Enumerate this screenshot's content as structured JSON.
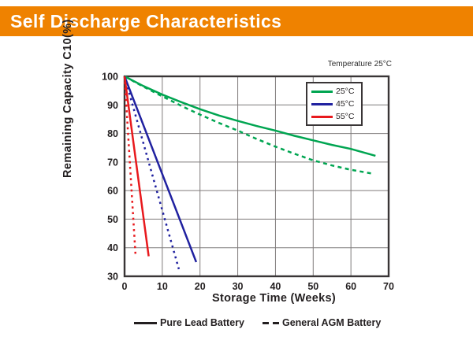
{
  "title_bar": {
    "text": "Self Discharge Characteristics"
  },
  "colors": {
    "accent_orange": "#EF8200",
    "series_green": "#00A551",
    "series_blue": "#2021A0",
    "series_red": "#E8191D",
    "grid_gray": "#7F7B7B",
    "text_black": "#231F20"
  },
  "chart_data": {
    "type": "line",
    "title": "Self Discharge Characteristics",
    "annotation": "Temperature 25°C",
    "xlabel": "Storage Time (Weeks)",
    "ylabel": "Remaining Capacity C10(%)",
    "xlim": [
      0,
      70
    ],
    "ylim": [
      30,
      100
    ],
    "x_ticks": [
      0,
      10,
      20,
      30,
      40,
      50,
      60,
      70
    ],
    "y_ticks": [
      30,
      40,
      50,
      60,
      70,
      80,
      90,
      100
    ],
    "grid": true,
    "legend_position": "top-right-inside",
    "series": [
      {
        "id": "25c-pure-lead",
        "temperature": "25°C",
        "battery": "Pure Lead Battery",
        "style": "solid",
        "color": "#00A551",
        "points": [
          [
            0,
            100
          ],
          [
            5,
            96.6
          ],
          [
            10,
            93.6
          ],
          [
            15,
            91
          ],
          [
            20,
            88.5
          ],
          [
            25,
            86.3
          ],
          [
            30,
            84.4
          ],
          [
            35,
            82.6
          ],
          [
            40,
            81
          ],
          [
            45,
            79.2
          ],
          [
            50,
            77.6
          ],
          [
            55,
            76
          ],
          [
            60,
            74.6
          ],
          [
            66.5,
            72.2
          ]
        ]
      },
      {
        "id": "25c-agm",
        "temperature": "25°C",
        "battery": "General AGM Battery",
        "style": "dashed",
        "color": "#00A551",
        "points": [
          [
            0,
            100
          ],
          [
            5,
            96.4
          ],
          [
            10,
            93
          ],
          [
            15,
            89.7
          ],
          [
            20,
            86.6
          ],
          [
            25,
            83.7
          ],
          [
            30,
            81
          ],
          [
            35,
            78.1
          ],
          [
            40,
            75.4
          ],
          [
            45,
            72.9
          ],
          [
            50,
            70.6
          ],
          [
            55,
            68.8
          ],
          [
            60,
            67.3
          ],
          [
            65.5,
            66
          ]
        ]
      },
      {
        "id": "45c-pure-lead",
        "temperature": "45°C",
        "battery": "Pure Lead Battery",
        "style": "solid",
        "color": "#2021A0",
        "points": [
          [
            0,
            100
          ],
          [
            19,
            35
          ]
        ]
      },
      {
        "id": "45c-agm",
        "temperature": "45°C",
        "battery": "General AGM Battery",
        "style": "dashed",
        "color": "#2021A0",
        "points": [
          [
            0,
            100
          ],
          [
            14.4,
            32.5
          ]
        ]
      },
      {
        "id": "55c-pure-lead",
        "temperature": "55°C",
        "battery": "Pure Lead Battery",
        "style": "solid",
        "color": "#E8191D",
        "points": [
          [
            0,
            100
          ],
          [
            6.4,
            37
          ]
        ]
      },
      {
        "id": "55c-agm",
        "temperature": "55°C",
        "battery": "General AGM Battery",
        "style": "dashed",
        "color": "#E8191D",
        "points": [
          [
            0,
            100
          ],
          [
            2.9,
            37.5
          ]
        ]
      }
    ]
  },
  "chart_legend": {
    "items": [
      {
        "label": "25°C",
        "color": "#00A551"
      },
      {
        "label": "45°C",
        "color": "#2021A0"
      },
      {
        "label": "55°C",
        "color": "#E8191D"
      }
    ]
  },
  "bottom_legend": {
    "solid_label": "Pure Lead Battery",
    "dashed_label": "General AGM Battery"
  }
}
